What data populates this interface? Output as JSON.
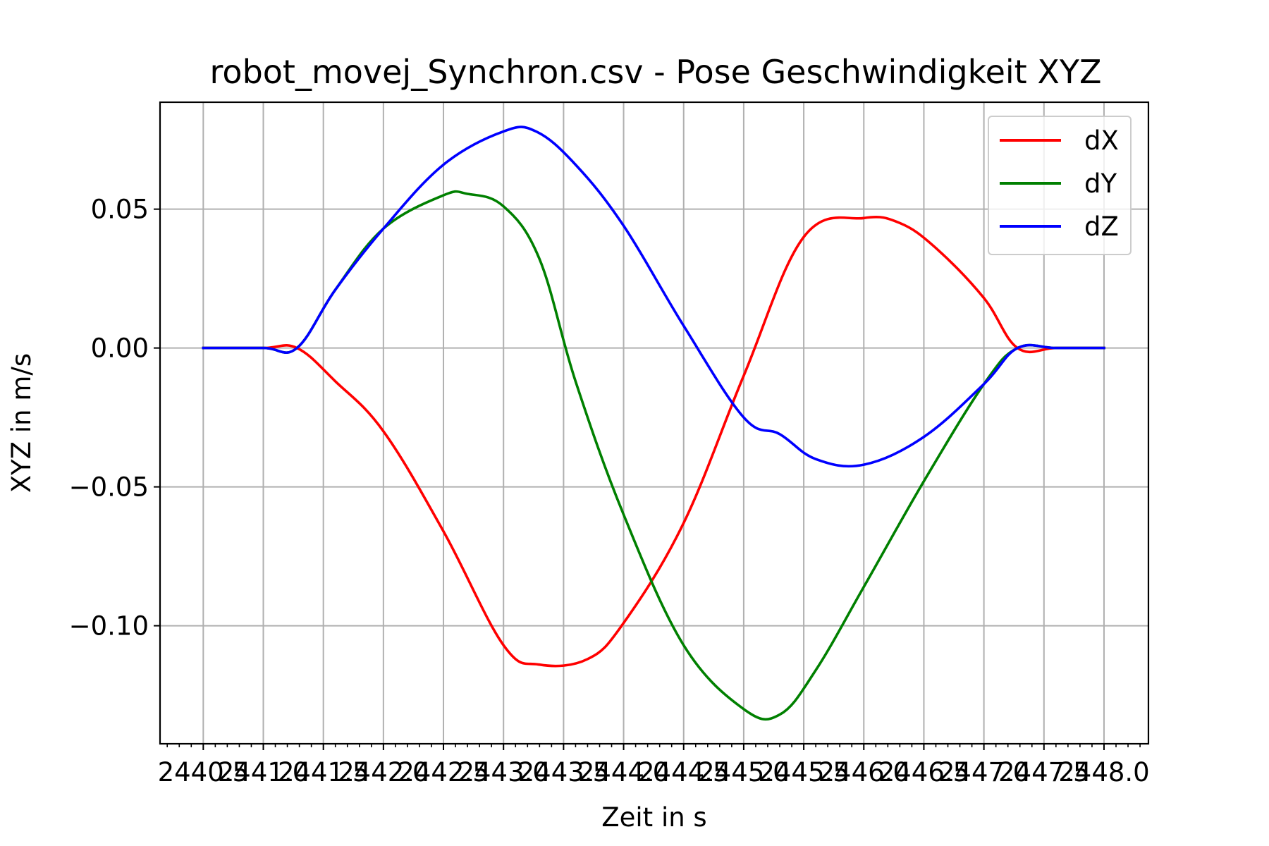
{
  "chart_data": {
    "type": "line",
    "title": "robot_movej_Synchron.csv - Pose Geschwindigkeit XYZ",
    "xlabel": "Zeit in s",
    "ylabel": "XYZ in m/s",
    "xlim": [
      2440.14,
      2448.37
    ],
    "ylim": [
      -0.1425,
      0.0885
    ],
    "grid": true,
    "legend_position": "top-right",
    "xticks": [
      2440.5,
      2441.0,
      2441.5,
      2442.0,
      2442.5,
      2443.0,
      2443.5,
      2444.0,
      2444.5,
      2445.0,
      2445.5,
      2446.0,
      2446.5,
      2447.0,
      2447.5,
      2448.0
    ],
    "xtick_labels": [
      "2440.5",
      "2441.0",
      "2441.5",
      "2442.0",
      "2442.5",
      "2443.0",
      "2443.5",
      "2444.0",
      "2444.5",
      "2445.0",
      "2445.5",
      "2446.0",
      "2446.5",
      "2447.0",
      "2447.5",
      "2448.0"
    ],
    "yticks": [
      0.05,
      0.0,
      -0.05,
      -0.1
    ],
    "ytick_labels": [
      "0.05",
      "0.00",
      "−0.05",
      "−0.10"
    ],
    "series": [
      {
        "name": "dX",
        "color": "#ff0000",
        "x": [
          2440.5,
          2441.0,
          2441.28,
          2441.6,
          2442.0,
          2442.5,
          2443.0,
          2443.3,
          2443.7,
          2444.0,
          2444.5,
          2445.0,
          2445.5,
          2446.0,
          2446.3,
          2446.6,
          2447.0,
          2447.28,
          2447.6,
          2448.0
        ],
        "y": [
          0.0,
          0.0,
          0.0,
          -0.012,
          -0.03,
          -0.066,
          -0.107,
          -0.114,
          -0.112,
          -0.099,
          -0.063,
          -0.01,
          0.04,
          0.0468,
          0.045,
          0.036,
          0.018,
          0.0,
          0.0,
          0.0
        ]
      },
      {
        "name": "dY",
        "color": "#008000",
        "x": [
          2440.5,
          2441.0,
          2441.28,
          2441.6,
          2442.0,
          2442.5,
          2442.7,
          2443.0,
          2443.3,
          2443.6,
          2444.0,
          2444.5,
          2445.0,
          2445.3,
          2445.6,
          2446.0,
          2446.5,
          2447.0,
          2447.28,
          2447.6,
          2448.0
        ],
        "y": [
          0.0,
          0.0,
          0.0,
          0.021,
          0.043,
          0.055,
          0.0555,
          0.051,
          0.032,
          -0.012,
          -0.06,
          -0.107,
          -0.13,
          -0.132,
          -0.116,
          -0.086,
          -0.048,
          -0.013,
          0.0,
          0.0,
          0.0
        ]
      },
      {
        "name": "dZ",
        "color": "#0000ff",
        "x": [
          2440.5,
          2441.0,
          2441.28,
          2441.6,
          2442.0,
          2442.5,
          2443.0,
          2443.27,
          2443.6,
          2444.0,
          2444.5,
          2445.0,
          2445.3,
          2445.6,
          2446.0,
          2446.5,
          2447.0,
          2447.28,
          2447.6,
          2448.0
        ],
        "y": [
          0.0,
          0.0,
          0.0,
          0.021,
          0.043,
          0.066,
          0.078,
          0.078,
          0.066,
          0.044,
          0.008,
          -0.025,
          -0.031,
          -0.04,
          -0.042,
          -0.032,
          -0.013,
          0.0,
          0.0,
          0.0
        ]
      }
    ]
  }
}
